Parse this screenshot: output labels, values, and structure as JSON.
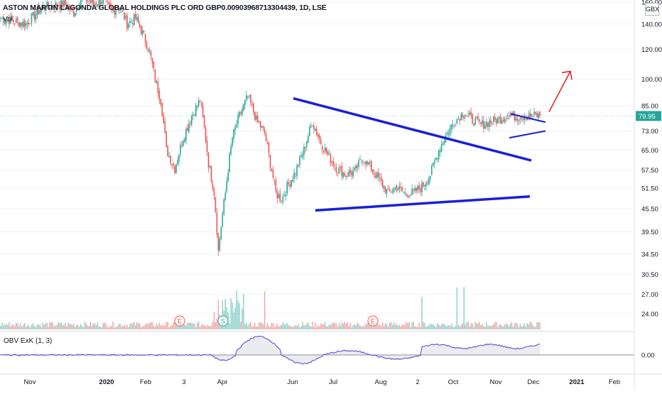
{
  "header": {
    "title": "ASTON MARTIN LAGONDA GLOBAL HOLDINGS PLC ORD GBP0.00903968713304439, 1D, LSE",
    "volume_label": "Vol",
    "currency_badge": "GBX"
  },
  "obv": {
    "label": "OBV ExK (1, 3)",
    "axis_tick": "0.00"
  },
  "colors": {
    "up": "#26a69a",
    "down": "#ef5350",
    "trendline": "#1a1fd6",
    "arrow": "#e31b1b",
    "obv_line": "#6b5bd6",
    "obv_neg": "#e05a4f",
    "last_price": "#26a69a"
  },
  "chart_data": {
    "type": "candlestick",
    "y_scale": "log",
    "ylim": [
      22,
      162
    ],
    "y_ticks": [
      "160.00",
      "140.00",
      "120.00",
      "100.00",
      "85.00",
      "73.00",
      "65.00",
      "57.50",
      "51.50",
      "45.50",
      "39.50",
      "34.50",
      "30.50",
      "27.00",
      "24.00"
    ],
    "last_price": "79.95",
    "x_ticks": [
      "Nov",
      "2020",
      "Feb",
      "3",
      "Apr",
      "Jun",
      "Jul",
      "Aug",
      "2",
      "Oct",
      "Nov",
      "Dec",
      "2021",
      "Feb"
    ],
    "event_markers": [
      {
        "label": "E",
        "kind": "earnings"
      },
      {
        "label": "S",
        "kind": "split"
      },
      {
        "label": "E",
        "kind": "earnings"
      }
    ],
    "price_anchors": {
      "date_index": [
        0,
        18,
        30,
        45,
        52,
        58,
        66,
        72,
        79,
        85,
        90,
        96,
        102,
        106,
        110,
        114,
        118,
        124,
        130,
        136,
        142,
        148,
        152,
        155,
        158,
        160,
        162,
        165,
        170,
        176,
        182,
        188,
        192,
        196,
        200,
        204,
        210,
        216,
        222,
        228,
        234,
        240,
        246,
        252,
        258,
        264,
        270,
        276,
        282,
        288,
        294,
        300,
        306,
        312,
        318,
        324,
        330,
        336,
        342,
        348,
        354,
        360,
        364,
        368,
        372,
        376,
        380,
        384
      ],
      "close": [
        145,
        140,
        155,
        158,
        150,
        165,
        158,
        162,
        152,
        155,
        140,
        145,
        130,
        118,
        100,
        88,
        65,
        58,
        70,
        80,
        88,
        60,
        50,
        35,
        44,
        50,
        58,
        70,
        80,
        90,
        78,
        72,
        60,
        50,
        48,
        52,
        57,
        65,
        77,
        68,
        62,
        58,
        56,
        57,
        62,
        58,
        54,
        50,
        52,
        50,
        50,
        52,
        56,
        65,
        72,
        78,
        82,
        78,
        76,
        77,
        78,
        80,
        80,
        80,
        80,
        80,
        80,
        80
      ]
    },
    "patterns": [
      {
        "name": "symmetrical triangle",
        "upper_line_gbx": [
          89,
          61
        ],
        "lower_line_gbx": [
          45,
          49
        ]
      },
      {
        "name": "flag",
        "upper_line_gbx": [
          81,
          77
        ],
        "lower_line_gbx": [
          70,
          73
        ]
      }
    ],
    "projection_arrow_gbx": [
      82,
      105
    ]
  }
}
